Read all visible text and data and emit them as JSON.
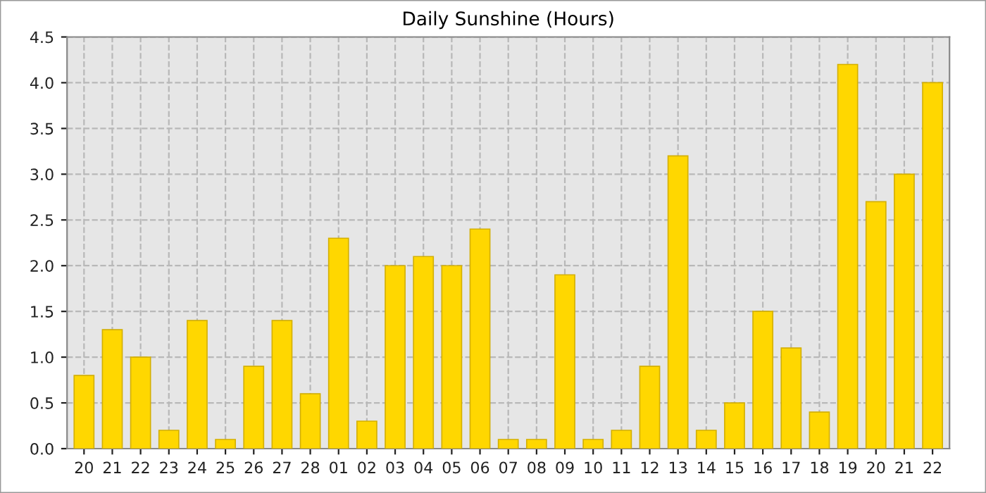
{
  "chart_data": {
    "type": "bar",
    "title": "Daily Sunshine (Hours)",
    "categories": [
      "20",
      "21",
      "22",
      "23",
      "24",
      "25",
      "26",
      "27",
      "28",
      "01",
      "02",
      "03",
      "04",
      "05",
      "06",
      "07",
      "08",
      "09",
      "10",
      "11",
      "12",
      "13",
      "14",
      "15",
      "16",
      "17",
      "18",
      "19",
      "20",
      "21",
      "22"
    ],
    "values": [
      0.8,
      1.3,
      1.0,
      0.2,
      1.4,
      0.1,
      0.9,
      1.4,
      0.6,
      2.3,
      0.3,
      2.0,
      2.1,
      2.0,
      2.4,
      0.1,
      0.1,
      1.9,
      0.1,
      0.2,
      0.9,
      3.2,
      0.2,
      0.5,
      1.5,
      1.1,
      0.4,
      4.2,
      2.7,
      3.0,
      4.0
    ],
    "color": "#ffd700",
    "ylim": [
      0,
      4.5
    ],
    "yticks": [
      {
        "value": 0,
        "label": "0.0"
      },
      {
        "value": 0.5,
        "label": "0.5"
      },
      {
        "value": 1,
        "label": "1.0"
      },
      {
        "value": 1.5,
        "label": "1.5"
      },
      {
        "value": 2,
        "label": "2.0"
      },
      {
        "value": 2.5,
        "label": "2.5"
      },
      {
        "value": 3,
        "label": "3.0"
      },
      {
        "value": 3.5,
        "label": "3.5"
      },
      {
        "value": 4,
        "label": "4.0"
      },
      {
        "value": 4.5,
        "label": "4.5"
      }
    ],
    "grid": true
  }
}
